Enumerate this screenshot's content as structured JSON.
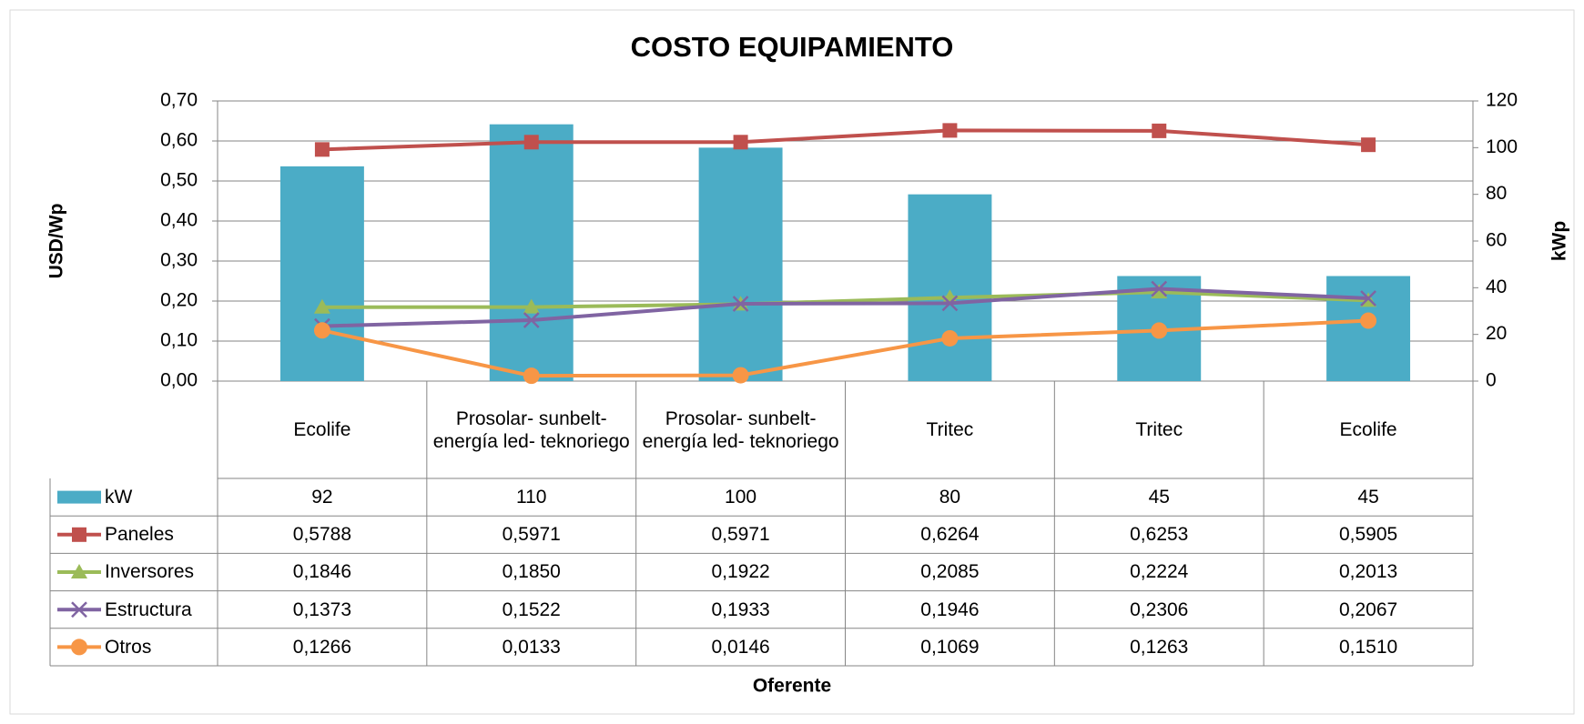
{
  "chart_data": {
    "type": "combo",
    "title": "COSTO EQUIPAMIENTO",
    "x_label": "Oferente",
    "y_label": "USD/Wp",
    "y2_label": "kWp",
    "categories": [
      "Ecolife",
      "Prosolar- sunbelt- energía led- teknoriego",
      "Prosolar- sunbelt- energía led- teknoriego",
      "Tritec",
      "Tritec",
      "Ecolife"
    ],
    "series": [
      {
        "name": "kW",
        "type": "bar",
        "axis": "y2",
        "color": "#4bacc6",
        "values": [
          92,
          110,
          100,
          80,
          45,
          45
        ]
      },
      {
        "name": "Paneles",
        "type": "line",
        "marker": "square",
        "color": "#c0504d",
        "values": [
          0.5788,
          0.5971,
          0.5971,
          0.6264,
          0.6253,
          0.5905
        ],
        "value_labels": [
          "0,5788",
          "0,5971",
          "0,5971",
          "0,6264",
          "0,6253",
          "0,5905"
        ]
      },
      {
        "name": "Inversores",
        "type": "line",
        "marker": "triangle",
        "color": "#9bbb59",
        "values": [
          0.1846,
          0.185,
          0.1922,
          0.2085,
          0.2224,
          0.2013
        ],
        "value_labels": [
          "0,1846",
          "0,1850",
          "0,1922",
          "0,2085",
          "0,2224",
          "0,2013"
        ]
      },
      {
        "name": "Estructura",
        "type": "line",
        "marker": "x",
        "color": "#8064a2",
        "values": [
          0.1373,
          0.1522,
          0.1933,
          0.1946,
          0.2306,
          0.2067
        ],
        "value_labels": [
          "0,1373",
          "0,1522",
          "0,1933",
          "0,1946",
          "0,2306",
          "0,2067"
        ]
      },
      {
        "name": "Otros",
        "type": "line",
        "marker": "circle",
        "color": "#f79646",
        "values": [
          0.1266,
          0.0133,
          0.0146,
          0.1069,
          0.1263,
          0.151
        ],
        "value_labels": [
          "0,1266",
          "0,0133",
          "0,0146",
          "0,1069",
          "0,1263",
          "0,1510"
        ]
      }
    ],
    "ylim": [
      0,
      0.7
    ],
    "yticks": [
      {
        "value": 0,
        "label": "0,00"
      },
      {
        "value": 0.1,
        "label": "0,10"
      },
      {
        "value": 0.2,
        "label": "0,20"
      },
      {
        "value": 0.3,
        "label": "0,30"
      },
      {
        "value": 0.4,
        "label": "0,40"
      },
      {
        "value": 0.5,
        "label": "0,50"
      },
      {
        "value": 0.6,
        "label": "0,60"
      },
      {
        "value": 0.7,
        "label": "0,70"
      }
    ],
    "y2lim": [
      0,
      120
    ],
    "y2ticks": [
      0,
      20,
      40,
      60,
      80,
      100,
      120
    ],
    "grid": true
  }
}
